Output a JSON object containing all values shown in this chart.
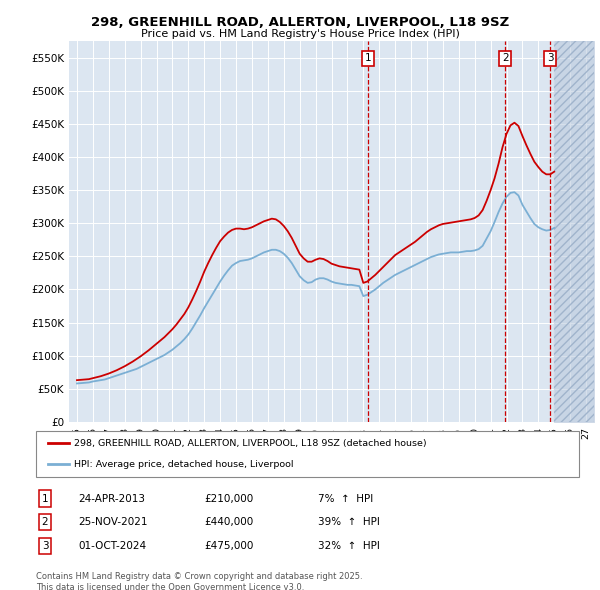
{
  "title": "298, GREENHILL ROAD, ALLERTON, LIVERPOOL, L18 9SZ",
  "subtitle": "Price paid vs. HM Land Registry's House Price Index (HPI)",
  "ylim": [
    0,
    575000
  ],
  "yticks": [
    0,
    50000,
    100000,
    150000,
    200000,
    250000,
    300000,
    350000,
    400000,
    450000,
    500000,
    550000
  ],
  "ytick_labels": [
    "£0",
    "£50K",
    "£100K",
    "£150K",
    "£200K",
    "£250K",
    "£300K",
    "£350K",
    "£400K",
    "£450K",
    "£500K",
    "£550K"
  ],
  "xlim_start": 1994.5,
  "xlim_end": 2027.5,
  "background_color": "#ffffff",
  "plot_bg_color": "#dce6f1",
  "grid_color": "#ffffff",
  "red_color": "#cc0000",
  "blue_color": "#7bafd4",
  "sale_color": "#cc0000",
  "hatch_start": 2025.0,
  "sales": [
    {
      "num": 1,
      "year": 2013.32,
      "price": 210000,
      "date": "24-APR-2013",
      "pct": "7%",
      "dir": "↑"
    },
    {
      "num": 2,
      "year": 2021.91,
      "price": 440000,
      "date": "25-NOV-2021",
      "pct": "39%",
      "dir": "↑"
    },
    {
      "num": 3,
      "year": 2024.75,
      "price": 475000,
      "date": "01-OCT-2024",
      "pct": "32%",
      "dir": "↑"
    }
  ],
  "legend_entries": [
    {
      "label": "298, GREENHILL ROAD, ALLERTON, LIVERPOOL, L18 9SZ (detached house)",
      "color": "#cc0000"
    },
    {
      "label": "HPI: Average price, detached house, Liverpool",
      "color": "#7bafd4"
    }
  ],
  "footnote": "Contains HM Land Registry data © Crown copyright and database right 2025.\nThis data is licensed under the Open Government Licence v3.0.",
  "hpi_data": {
    "years": [
      1995.0,
      1995.25,
      1995.5,
      1995.75,
      1996.0,
      1996.25,
      1996.5,
      1996.75,
      1997.0,
      1997.25,
      1997.5,
      1997.75,
      1998.0,
      1998.25,
      1998.5,
      1998.75,
      1999.0,
      1999.25,
      1999.5,
      1999.75,
      2000.0,
      2000.25,
      2000.5,
      2000.75,
      2001.0,
      2001.25,
      2001.5,
      2001.75,
      2002.0,
      2002.25,
      2002.5,
      2002.75,
      2003.0,
      2003.25,
      2003.5,
      2003.75,
      2004.0,
      2004.25,
      2004.5,
      2004.75,
      2005.0,
      2005.25,
      2005.5,
      2005.75,
      2006.0,
      2006.25,
      2006.5,
      2006.75,
      2007.0,
      2007.25,
      2007.5,
      2007.75,
      2008.0,
      2008.25,
      2008.5,
      2008.75,
      2009.0,
      2009.25,
      2009.5,
      2009.75,
      2010.0,
      2010.25,
      2010.5,
      2010.75,
      2011.0,
      2011.25,
      2011.5,
      2011.75,
      2012.0,
      2012.25,
      2012.5,
      2012.75,
      2013.0,
      2013.25,
      2013.5,
      2013.75,
      2014.0,
      2014.25,
      2014.5,
      2014.75,
      2015.0,
      2015.25,
      2015.5,
      2015.75,
      2016.0,
      2016.25,
      2016.5,
      2016.75,
      2017.0,
      2017.25,
      2017.5,
      2017.75,
      2018.0,
      2018.25,
      2018.5,
      2018.75,
      2019.0,
      2019.25,
      2019.5,
      2019.75,
      2020.0,
      2020.25,
      2020.5,
      2020.75,
      2021.0,
      2021.25,
      2021.5,
      2021.75,
      2022.0,
      2022.25,
      2022.5,
      2022.75,
      2023.0,
      2023.25,
      2023.5,
      2023.75,
      2024.0,
      2024.25,
      2024.5,
      2024.75,
      2025.0
    ],
    "values": [
      58000,
      58500,
      59000,
      59500,
      61000,
      62000,
      63000,
      64000,
      66000,
      68000,
      70000,
      72000,
      74000,
      76000,
      78000,
      80000,
      83000,
      86000,
      89000,
      92000,
      95000,
      98000,
      101000,
      105000,
      109000,
      114000,
      119000,
      125000,
      132000,
      141000,
      151000,
      161000,
      172000,
      182000,
      192000,
      202000,
      212000,
      221000,
      229000,
      236000,
      240000,
      243000,
      244000,
      245000,
      247000,
      250000,
      253000,
      256000,
      258000,
      260000,
      260000,
      258000,
      254000,
      248000,
      240000,
      230000,
      220000,
      214000,
      210000,
      211000,
      215000,
      217000,
      217000,
      215000,
      212000,
      210000,
      209000,
      208000,
      207000,
      207000,
      206000,
      205000,
      190000,
      192000,
      196000,
      200000,
      205000,
      210000,
      214000,
      218000,
      222000,
      225000,
      228000,
      231000,
      234000,
      237000,
      240000,
      243000,
      246000,
      249000,
      251000,
      253000,
      254000,
      255000,
      256000,
      256000,
      256000,
      257000,
      258000,
      258000,
      259000,
      261000,
      266000,
      277000,
      288000,
      302000,
      317000,
      330000,
      340000,
      346000,
      347000,
      342000,
      328000,
      318000,
      308000,
      299000,
      294000,
      291000,
      289000,
      290000,
      293000
    ]
  },
  "prop_data": {
    "years": [
      1995.0,
      1995.25,
      1995.5,
      1995.75,
      1996.0,
      1996.25,
      1996.5,
      1996.75,
      1997.0,
      1997.25,
      1997.5,
      1997.75,
      1998.0,
      1998.25,
      1998.5,
      1998.75,
      1999.0,
      1999.25,
      1999.5,
      1999.75,
      2000.0,
      2000.25,
      2000.5,
      2000.75,
      2001.0,
      2001.25,
      2001.5,
      2001.75,
      2002.0,
      2002.25,
      2002.5,
      2002.75,
      2003.0,
      2003.25,
      2003.5,
      2003.75,
      2004.0,
      2004.25,
      2004.5,
      2004.75,
      2005.0,
      2005.25,
      2005.5,
      2005.75,
      2006.0,
      2006.25,
      2006.5,
      2006.75,
      2007.0,
      2007.25,
      2007.5,
      2007.75,
      2008.0,
      2008.25,
      2008.5,
      2008.75,
      2009.0,
      2009.25,
      2009.5,
      2009.75,
      2010.0,
      2010.25,
      2010.5,
      2010.75,
      2011.0,
      2011.25,
      2011.5,
      2011.75,
      2012.0,
      2012.25,
      2012.5,
      2012.75,
      2013.0,
      2013.25,
      2013.5,
      2013.75,
      2014.0,
      2014.25,
      2014.5,
      2014.75,
      2015.0,
      2015.25,
      2015.5,
      2015.75,
      2016.0,
      2016.25,
      2016.5,
      2016.75,
      2017.0,
      2017.25,
      2017.5,
      2017.75,
      2018.0,
      2018.25,
      2018.5,
      2018.75,
      2019.0,
      2019.25,
      2019.5,
      2019.75,
      2020.0,
      2020.25,
      2020.5,
      2020.75,
      2021.0,
      2021.25,
      2021.5,
      2021.75,
      2022.0,
      2022.25,
      2022.5,
      2022.75,
      2023.0,
      2023.25,
      2023.5,
      2023.75,
      2024.0,
      2024.25,
      2024.5,
      2024.75,
      2025.0
    ],
    "values": [
      63000,
      63500,
      64000,
      64500,
      66000,
      67500,
      69000,
      71000,
      73000,
      75500,
      78000,
      81000,
      84000,
      87500,
      91000,
      95000,
      99000,
      103500,
      108000,
      113000,
      118000,
      123000,
      128000,
      134000,
      140000,
      147000,
      155000,
      163000,
      173000,
      185000,
      198000,
      212000,
      227000,
      240000,
      252000,
      263000,
      273000,
      280000,
      286000,
      290000,
      292000,
      292000,
      291000,
      292000,
      294000,
      297000,
      300000,
      303000,
      305000,
      307000,
      306000,
      302000,
      296000,
      288000,
      278000,
      266000,
      254000,
      247000,
      242000,
      242000,
      245000,
      247000,
      246000,
      243000,
      239000,
      237000,
      235000,
      234000,
      233000,
      232000,
      231000,
      230000,
      210000,
      212000,
      217000,
      222000,
      228000,
      234000,
      240000,
      246000,
      252000,
      256000,
      260000,
      264000,
      268000,
      272000,
      277000,
      282000,
      287000,
      291000,
      294000,
      297000,
      299000,
      300000,
      301000,
      302000,
      303000,
      304000,
      305000,
      306000,
      308000,
      312000,
      320000,
      334000,
      350000,
      368000,
      390000,
      415000,
      435000,
      448000,
      452000,
      447000,
      432000,
      418000,
      405000,
      393000,
      385000,
      378000,
      374000,
      374000,
      378000
    ]
  }
}
